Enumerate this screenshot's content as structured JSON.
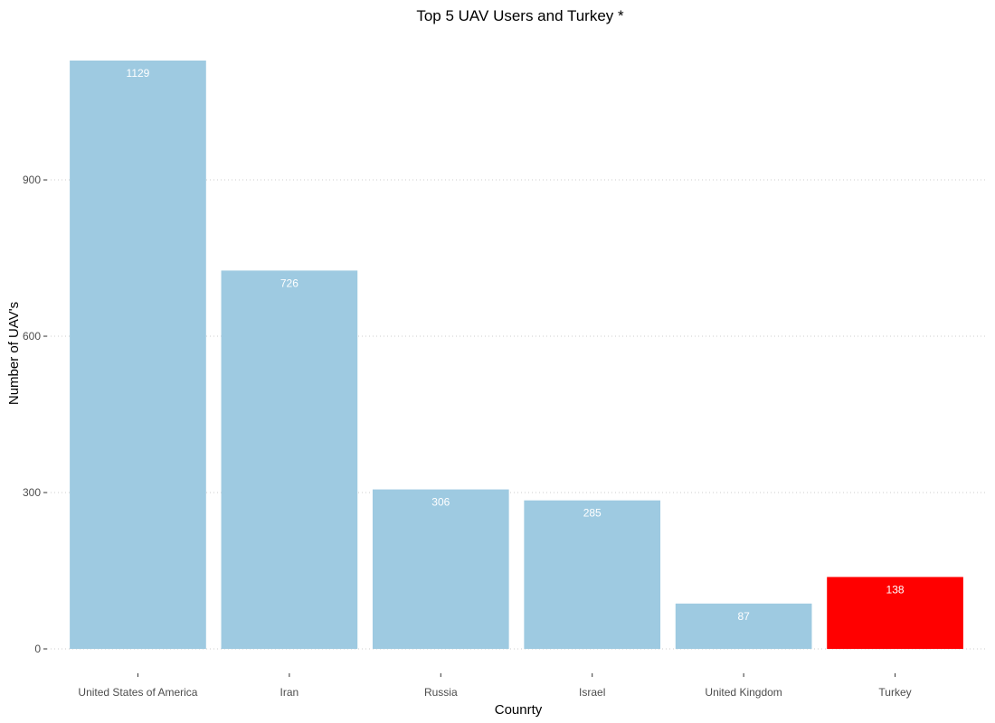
{
  "chart_data": {
    "type": "bar",
    "title": "Top 5 UAV Users and Turkey *",
    "xlabel": "Counrty",
    "ylabel": "Number of UAV's",
    "categories": [
      "United States of America",
      "Iran",
      "Russia",
      "Israel",
      "United Kingdom",
      "Turkey"
    ],
    "values": [
      1129,
      726,
      306,
      285,
      87,
      138
    ],
    "data_labels": [
      "1129",
      "726",
      "306",
      "285",
      "87",
      "138"
    ],
    "bar_colors": [
      "#9ecae1",
      "#9ecae1",
      "#9ecae1",
      "#9ecae1",
      "#9ecae1",
      "#ff0000"
    ],
    "y_ticks": [
      0,
      300,
      600,
      900
    ],
    "y_tick_labels": [
      "0",
      "300",
      "600",
      "900"
    ],
    "ylim": [
      0,
      1129
    ],
    "grid": "horizontal dotted",
    "legend": "none",
    "colors": {
      "default_bar": "#9ecae1",
      "highlight_bar": "#ff0000",
      "grid": "#cccccc",
      "tick_label": "#4d4d4d"
    }
  }
}
